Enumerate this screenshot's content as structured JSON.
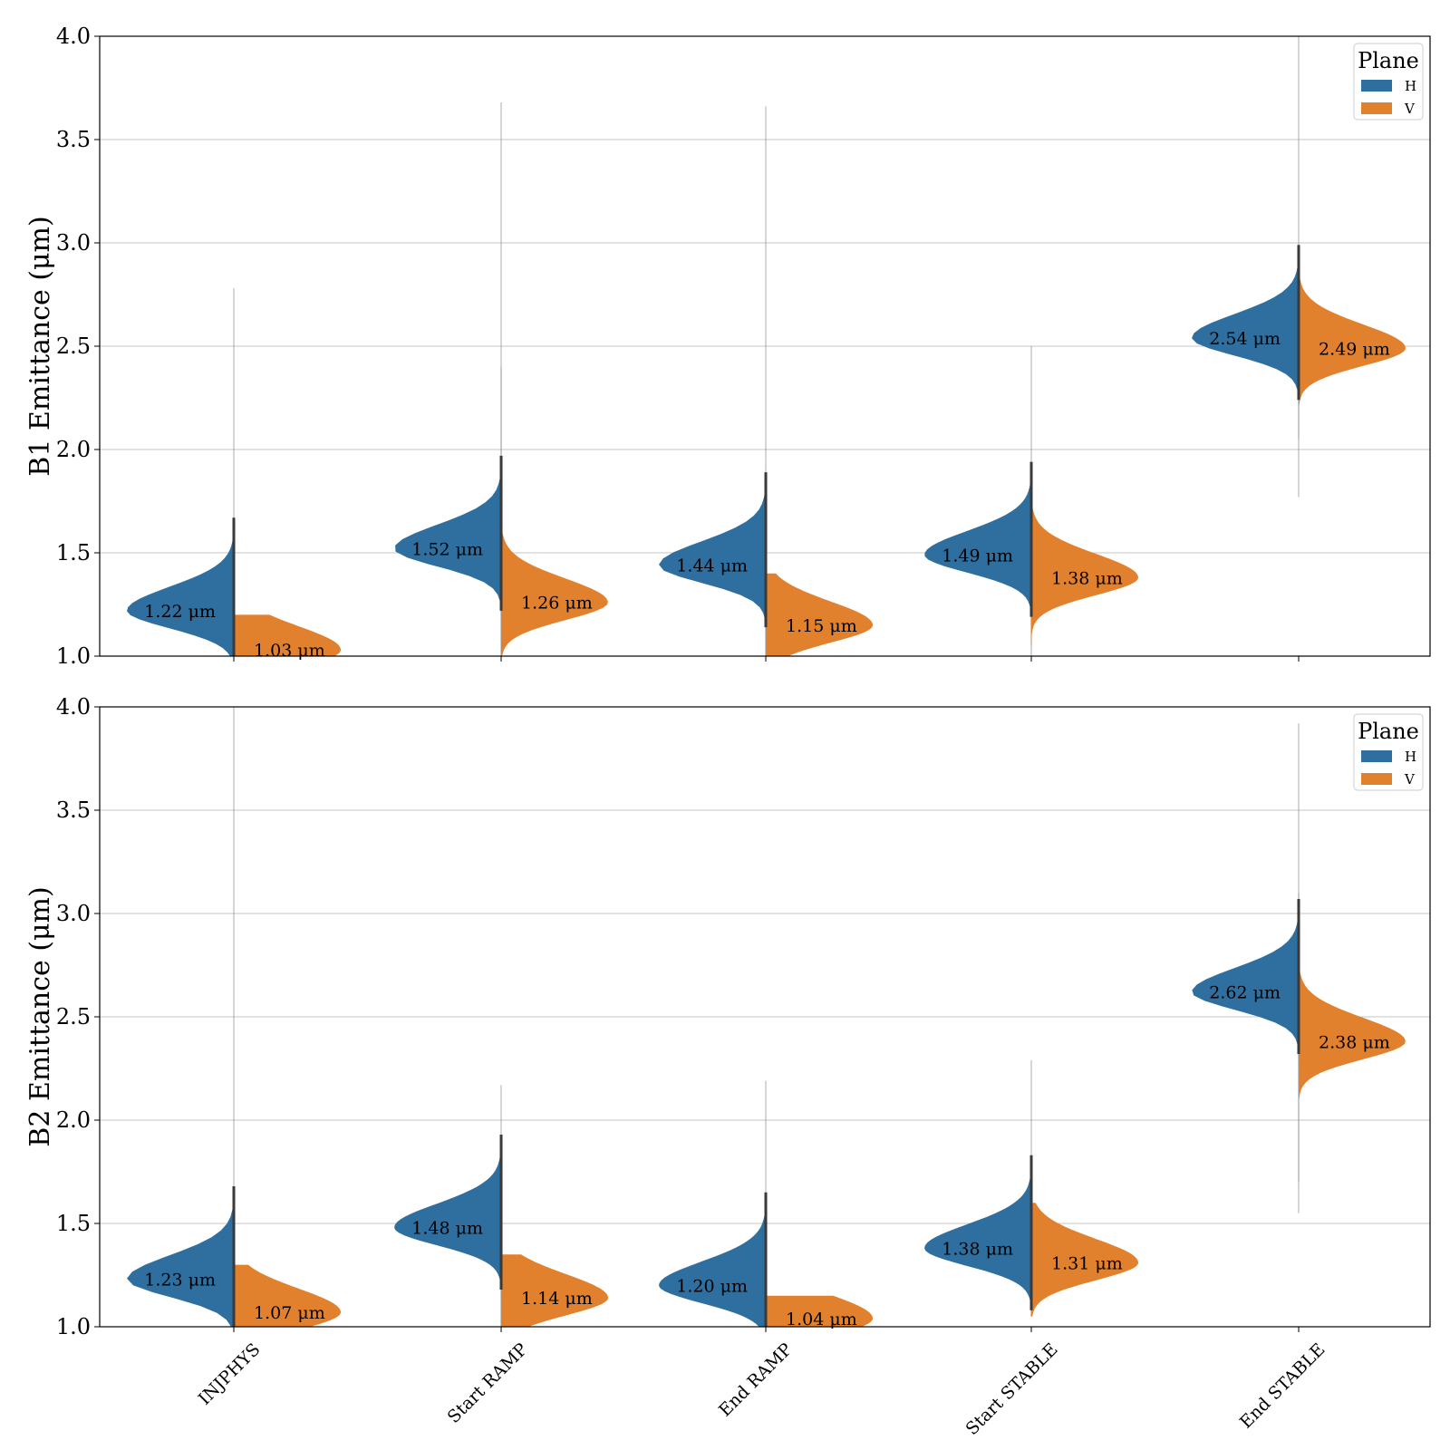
{
  "colors": {
    "H": "#2f6f9f",
    "V": "#e2812d",
    "grid": "#b0b0b0",
    "median_line": "#3a3a3a"
  },
  "chart_data": [
    {
      "type": "violin",
      "ylabel": "B1 Emittance (μm)",
      "ylim": [
        1.0,
        4.0
      ],
      "yticks": [
        "1.0",
        "1.5",
        "2.0",
        "2.5",
        "3.0",
        "3.5",
        "4.0"
      ],
      "grid": true,
      "legend": {
        "title": "Plane",
        "placement": "top-right",
        "entries": [
          "H",
          "V"
        ]
      },
      "categories": [
        "INJPHYS",
        "Start RAMP",
        "End RAMP",
        "Start STABLE",
        "End STABLE"
      ],
      "series": [
        {
          "name": "H",
          "medians": [
            1.22,
            1.52,
            1.44,
            1.49,
            2.54
          ],
          "labels": [
            "1.22 μm",
            "1.52 μm",
            "1.44 μm",
            "1.49 μm",
            "2.54 μm"
          ],
          "max": [
            2.78,
            3.68,
            3.66,
            2.5,
            4.0
          ],
          "min": [
            1.0,
            1.0,
            1.0,
            1.0,
            1.77
          ]
        },
        {
          "name": "V",
          "medians": [
            1.03,
            1.26,
            1.15,
            1.38,
            2.49
          ],
          "labels": [
            "1.03 μm",
            "1.26 μm",
            "1.15 μm",
            "1.38 μm",
            "2.49 μm"
          ],
          "max": [
            1.2,
            2.4,
            1.4,
            1.75,
            2.95
          ],
          "min": [
            1.0,
            1.0,
            1.0,
            1.05,
            2.05
          ]
        }
      ]
    },
    {
      "type": "violin",
      "ylabel": "B2 Emittance (μm)",
      "ylim": [
        1.0,
        4.0
      ],
      "yticks": [
        "1.0",
        "1.5",
        "2.0",
        "2.5",
        "3.0",
        "3.5",
        "4.0"
      ],
      "grid": true,
      "legend": {
        "title": "Plane",
        "placement": "top-right",
        "entries": [
          "H",
          "V"
        ]
      },
      "categories": [
        "INJPHYS",
        "Start RAMP",
        "End RAMP",
        "Start STABLE",
        "End STABLE"
      ],
      "series": [
        {
          "name": "H",
          "medians": [
            1.23,
            1.48,
            1.2,
            1.38,
            2.62
          ],
          "labels": [
            "1.23 μm",
            "1.48 μm",
            "1.20 μm",
            "1.38 μm",
            "2.62 μm"
          ],
          "max": [
            4.0,
            2.17,
            2.19,
            2.29,
            3.92
          ],
          "min": [
            1.0,
            1.0,
            1.0,
            1.05,
            1.55
          ]
        },
        {
          "name": "V",
          "medians": [
            1.07,
            1.14,
            1.04,
            1.31,
            2.38
          ],
          "labels": [
            "1.07 μm",
            "1.14 μm",
            "1.04 μm",
            "1.31 μm",
            "2.38 μm"
          ],
          "max": [
            1.3,
            1.35,
            1.15,
            1.6,
            3.1
          ],
          "min": [
            1.0,
            1.0,
            1.0,
            1.05,
            1.7
          ]
        }
      ]
    }
  ]
}
